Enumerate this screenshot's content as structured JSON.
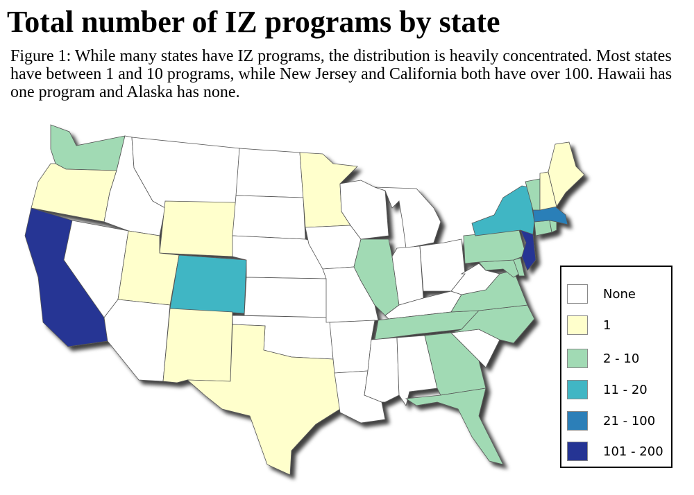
{
  "title": "Total number of IZ programs by state",
  "caption": "Figure 1: While many states have IZ programs, the distribution is heavily concentrated. Most states have between 1 and 10 programs, while New Jersey and California both have over 100. Hawaii has one program and Alaska has none.",
  "legend": [
    {
      "label": "None",
      "color": "#ffffff"
    },
    {
      "label": "1",
      "color": "#ffffcc"
    },
    {
      "label": "2 - 10",
      "color": "#a1dab4"
    },
    {
      "label": "11 - 20",
      "color": "#41b6c4"
    },
    {
      "label": "21 - 100",
      "color": "#2c7fb8"
    },
    {
      "label": "101 - 200",
      "color": "#253494"
    }
  ],
  "states": [
    {
      "name": "Washington",
      "class": "2 - 10"
    },
    {
      "name": "Oregon",
      "class": "1"
    },
    {
      "name": "California",
      "class": "101 - 200"
    },
    {
      "name": "Nevada",
      "class": "None"
    },
    {
      "name": "Idaho",
      "class": "None"
    },
    {
      "name": "Montana",
      "class": "None"
    },
    {
      "name": "Wyoming",
      "class": "1"
    },
    {
      "name": "Utah",
      "class": "1"
    },
    {
      "name": "Arizona",
      "class": "None"
    },
    {
      "name": "Colorado",
      "class": "11 - 20"
    },
    {
      "name": "New Mexico",
      "class": "1"
    },
    {
      "name": "North Dakota",
      "class": "None"
    },
    {
      "name": "South Dakota",
      "class": "None"
    },
    {
      "name": "Nebraska",
      "class": "None"
    },
    {
      "name": "Kansas",
      "class": "None"
    },
    {
      "name": "Oklahoma",
      "class": "None"
    },
    {
      "name": "Texas",
      "class": "1"
    },
    {
      "name": "Minnesota",
      "class": "1"
    },
    {
      "name": "Iowa",
      "class": "None"
    },
    {
      "name": "Missouri",
      "class": "None"
    },
    {
      "name": "Arkansas",
      "class": "None"
    },
    {
      "name": "Louisiana",
      "class": "None"
    },
    {
      "name": "Wisconsin",
      "class": "None"
    },
    {
      "name": "Illinois",
      "class": "2 - 10"
    },
    {
      "name": "Michigan",
      "class": "None"
    },
    {
      "name": "Indiana",
      "class": "None"
    },
    {
      "name": "Ohio",
      "class": "None"
    },
    {
      "name": "Kentucky",
      "class": "None"
    },
    {
      "name": "Tennessee",
      "class": "2 - 10"
    },
    {
      "name": "Mississippi",
      "class": "None"
    },
    {
      "name": "Alabama",
      "class": "None"
    },
    {
      "name": "Georgia",
      "class": "2 - 10"
    },
    {
      "name": "Florida",
      "class": "2 - 10"
    },
    {
      "name": "South Carolina",
      "class": "None"
    },
    {
      "name": "North Carolina",
      "class": "2 - 10"
    },
    {
      "name": "Virginia",
      "class": "2 - 10"
    },
    {
      "name": "West Virginia",
      "class": "None"
    },
    {
      "name": "Maryland",
      "class": "2 - 10"
    },
    {
      "name": "Delaware",
      "class": "2 - 10"
    },
    {
      "name": "Pennsylvania",
      "class": "2 - 10"
    },
    {
      "name": "New Jersey",
      "class": "101 - 200"
    },
    {
      "name": "New York",
      "class": "11 - 20"
    },
    {
      "name": "Connecticut",
      "class": "2 - 10"
    },
    {
      "name": "Rhode Island",
      "class": "2 - 10"
    },
    {
      "name": "Massachusetts",
      "class": "21 - 100"
    },
    {
      "name": "Vermont",
      "class": "2 - 10"
    },
    {
      "name": "New Hampshire",
      "class": "1"
    },
    {
      "name": "Maine",
      "class": "1"
    }
  ]
}
